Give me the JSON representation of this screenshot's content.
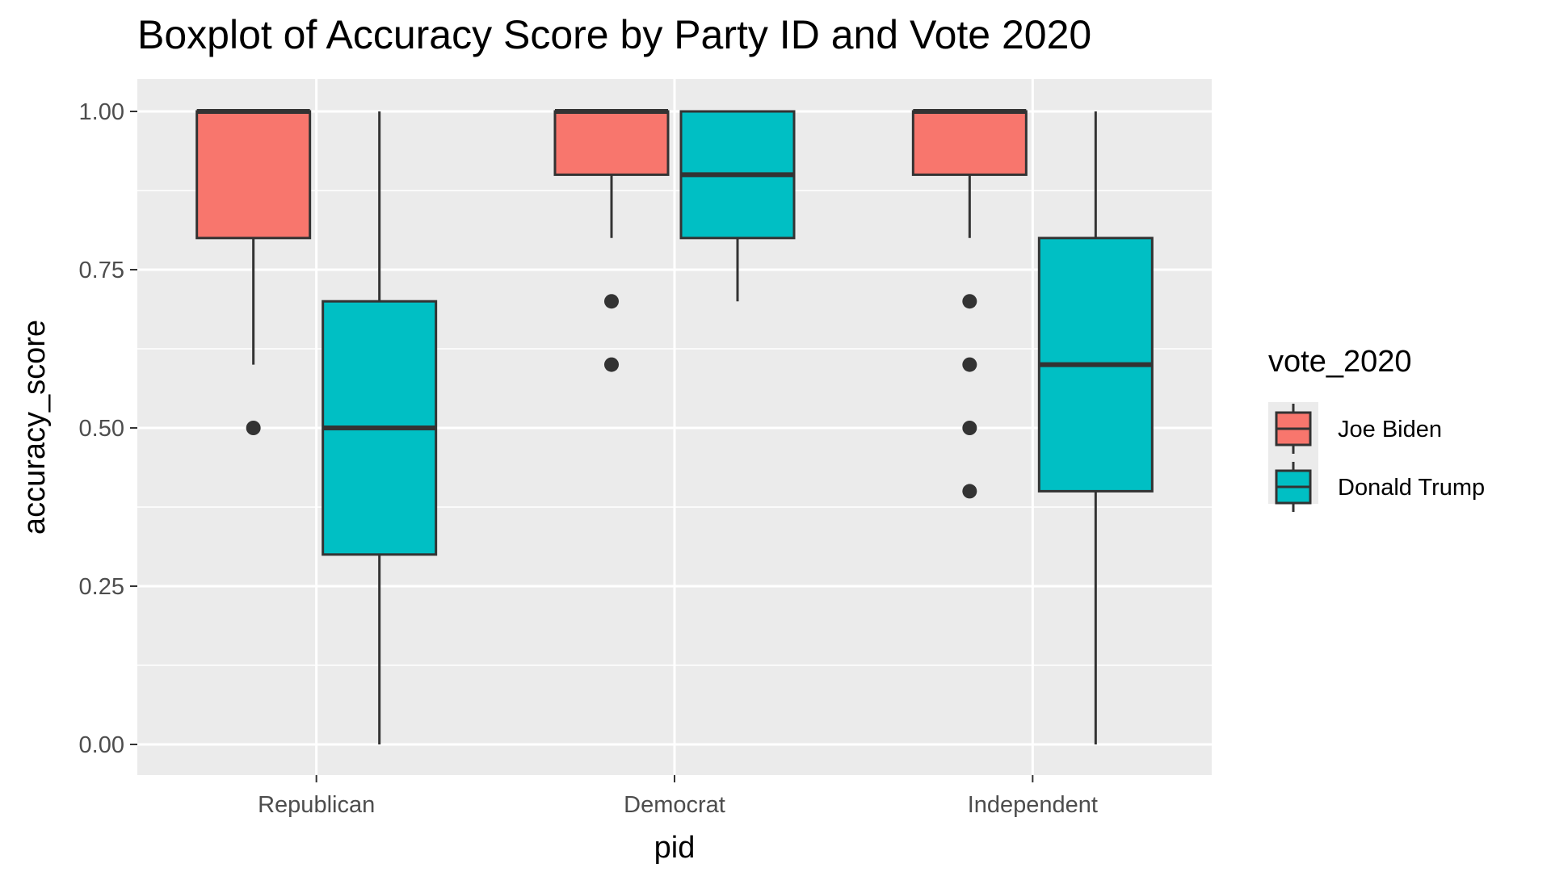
{
  "chart_data": {
    "type": "boxplot",
    "title": "Boxplot of Accuracy Score by Party ID and Vote 2020",
    "xlabel": "pid",
    "ylabel": "accuracy_score",
    "categories": [
      "Republican",
      "Democrat",
      "Independent"
    ],
    "ylim": [
      -0.05,
      1.05
    ],
    "yticks": [
      0.0,
      0.25,
      0.5,
      0.75,
      1.0
    ],
    "ytick_labels": [
      "0.00",
      "0.25",
      "0.50",
      "0.75",
      "1.00"
    ],
    "grid": true,
    "legend": {
      "title": "vote_2020",
      "position": "right"
    },
    "series": [
      {
        "name": "Joe Biden",
        "color": "#F8766D",
        "boxes": [
          {
            "category": "Republican",
            "whisker_low": 0.6,
            "q1": 0.8,
            "median": 1.0,
            "q3": 1.0,
            "whisker_high": 1.0,
            "outliers": [
              0.5
            ]
          },
          {
            "category": "Democrat",
            "whisker_low": 0.8,
            "q1": 0.9,
            "median": 1.0,
            "q3": 1.0,
            "whisker_high": 1.0,
            "outliers": [
              0.7,
              0.6
            ]
          },
          {
            "category": "Independent",
            "whisker_low": 0.8,
            "q1": 0.9,
            "median": 1.0,
            "q3": 1.0,
            "whisker_high": 1.0,
            "outliers": [
              0.7,
              0.6,
              0.5,
              0.4
            ]
          }
        ]
      },
      {
        "name": "Donald Trump",
        "color": "#00BFC4",
        "boxes": [
          {
            "category": "Republican",
            "whisker_low": 0.0,
            "q1": 0.3,
            "median": 0.5,
            "q3": 0.7,
            "whisker_high": 1.0,
            "outliers": []
          },
          {
            "category": "Democrat",
            "whisker_low": 0.7,
            "q1": 0.8,
            "median": 0.9,
            "q3": 1.0,
            "whisker_high": 1.0,
            "outliers": []
          },
          {
            "category": "Independent",
            "whisker_low": 0.0,
            "q1": 0.4,
            "median": 0.6,
            "q3": 0.8,
            "whisker_high": 1.0,
            "outliers": []
          }
        ]
      }
    ]
  },
  "colors": {
    "panel_background": "#EBEBEB",
    "grid_line": "#FFFFFF",
    "box_outline": "#333333"
  }
}
